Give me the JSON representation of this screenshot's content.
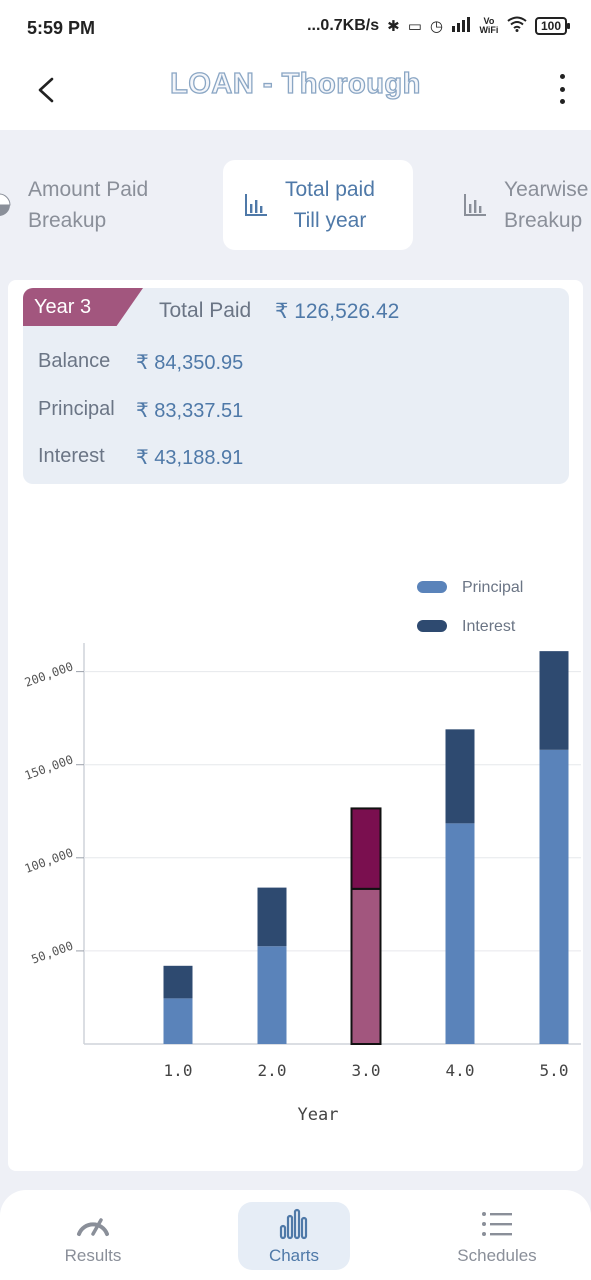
{
  "status_bar": {
    "time": "5:59 PM",
    "network_speed": "...0.7KB/s",
    "vowifi": "Vo WiFi",
    "battery": "100"
  },
  "app_bar": {
    "title": "LOAN - Thorough",
    "back_icon": "back-arrow-icon",
    "menu_icon": "more-vertical-icon"
  },
  "tabs": [
    {
      "line1": "Amount Paid",
      "line2": "Breakup",
      "icon": "pie-chart-icon",
      "active": false
    },
    {
      "line1": "Total paid",
      "line2": "Till year",
      "icon": "bar-chart-icon",
      "active": true
    },
    {
      "line1": "Yearwise",
      "line2": "Breakup",
      "icon": "bar-chart-icon",
      "active": false
    }
  ],
  "summary": {
    "year_badge": "Year 3",
    "total_label": "Total Paid",
    "total_value": "₹ 126,526.42",
    "balance_label": "Balance",
    "balance_value": "₹ 84,350.95",
    "principal_label": "Principal",
    "principal_value": "₹ 83,337.51",
    "interest_label": "Interest",
    "interest_value": "₹ 43,188.91"
  },
  "chart_data": {
    "type": "bar",
    "stacked": true,
    "categories": [
      "1.0",
      "2.0",
      "3.0",
      "4.0",
      "5.0"
    ],
    "series": [
      {
        "name": "Principal",
        "values": [
          24500,
          52500,
          83337.51,
          118500,
          158000
        ],
        "color": "#5a83ba"
      },
      {
        "name": "Interest",
        "values": [
          17500,
          31500,
          43188.91,
          50500,
          53000
        ],
        "color": "#2e4a70"
      }
    ],
    "highlight_index": 2,
    "highlight_colors": {
      "Principal": "#a2567e",
      "Interest": "#7a0f4f"
    },
    "xlabel": "Year",
    "ylabel": "",
    "y_ticks": [
      "50,000",
      "100,000",
      "150,000",
      "200,000"
    ],
    "y_tick_values": [
      50000,
      100000,
      150000,
      200000
    ],
    "ylim": [
      0,
      210000
    ],
    "grid": true,
    "legend_position": "top-right"
  },
  "bottom_nav": [
    {
      "label": "Results",
      "icon": "speedometer-icon",
      "active": false
    },
    {
      "label": "Charts",
      "icon": "bar-chart-icon",
      "active": true
    },
    {
      "label": "Schedules",
      "icon": "list-icon",
      "active": false
    }
  ]
}
